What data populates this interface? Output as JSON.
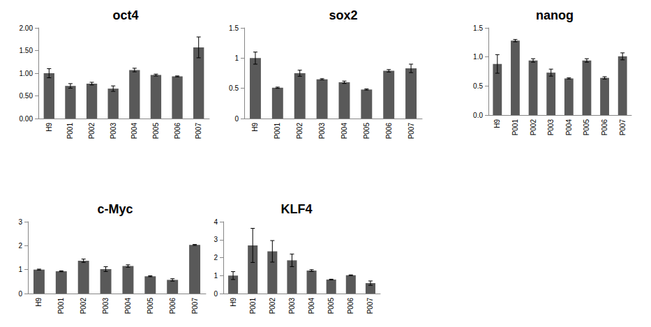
{
  "chart_data": [
    {
      "type": "bar",
      "title": "oct4",
      "categories": [
        "H9",
        "P001",
        "P002",
        "P003",
        "P004",
        "P005",
        "P006",
        "P007"
      ],
      "values": [
        1.0,
        0.72,
        0.77,
        0.66,
        1.07,
        0.96,
        0.93,
        1.57
      ],
      "errors": [
        0.1,
        0.05,
        0.03,
        0.06,
        0.04,
        0.02,
        0.01,
        0.23
      ],
      "color": "#595959",
      "ylim": [
        0,
        2
      ],
      "yticks": [
        {
          "value": 0,
          "label": "0.00"
        },
        {
          "value": 0.5,
          "label": "0.50"
        },
        {
          "value": 1,
          "label": "1.00"
        },
        {
          "value": 1.5,
          "label": "1.50"
        },
        {
          "value": 2,
          "label": "2.00"
        }
      ],
      "grid": false
    },
    {
      "type": "bar",
      "title": "sox2",
      "categories": [
        "H9",
        "P001",
        "P002",
        "P003",
        "P004",
        "P005",
        "P006",
        "P007"
      ],
      "values": [
        1.0,
        0.51,
        0.75,
        0.65,
        0.6,
        0.48,
        0.79,
        0.83
      ],
      "errors": [
        0.1,
        0.01,
        0.05,
        0.01,
        0.02,
        0.01,
        0.02,
        0.07
      ],
      "color": "#595959",
      "ylim": [
        0,
        1.5
      ],
      "yticks": [
        0,
        0.5,
        1,
        1.5
      ],
      "grid": false
    },
    {
      "type": "bar",
      "title": "nanog",
      "categories": [
        "H9",
        "P001",
        "P002",
        "P003",
        "P004",
        "P005",
        "P006",
        "P007"
      ],
      "values": [
        0.88,
        1.28,
        0.94,
        0.73,
        0.63,
        0.94,
        0.64,
        1.01
      ],
      "errors": [
        0.16,
        0.02,
        0.03,
        0.06,
        0.01,
        0.03,
        0.02,
        0.06
      ],
      "color": "#595959",
      "ylim": [
        0,
        1.5
      ],
      "yticks": [
        {
          "value": 0,
          "label": "0.0"
        },
        {
          "value": 0.5,
          "label": "0.5"
        },
        {
          "value": 1,
          "label": "1.0"
        },
        {
          "value": 1.5,
          "label": "1.5"
        }
      ],
      "grid": false
    },
    {
      "type": "bar",
      "title": "c-Myc",
      "categories": [
        "H9",
        "P001",
        "P002",
        "P003",
        "P004",
        "P005",
        "P006",
        "P007"
      ],
      "values": [
        1.0,
        0.93,
        1.37,
        1.02,
        1.15,
        0.72,
        0.57,
        2.03
      ],
      "errors": [
        0.02,
        0.02,
        0.07,
        0.1,
        0.05,
        0.02,
        0.05,
        0.02
      ],
      "color": "#595959",
      "ylim": [
        0,
        3
      ],
      "yticks": [
        0,
        1,
        2,
        3
      ],
      "grid": false
    },
    {
      "type": "bar",
      "title": "KLF4",
      "categories": [
        "H9",
        "P001",
        "P002",
        "P003",
        "P004",
        "P005",
        "P006",
        "P007"
      ],
      "values": [
        1.0,
        2.68,
        2.35,
        1.85,
        1.28,
        0.78,
        1.02,
        0.58
      ],
      "errors": [
        0.22,
        0.95,
        0.6,
        0.35,
        0.05,
        0.02,
        0.02,
        0.12
      ],
      "color": "#595959",
      "ylim": [
        0,
        4
      ],
      "yticks": [
        0,
        1,
        2,
        3,
        4
      ],
      "grid": false
    }
  ]
}
